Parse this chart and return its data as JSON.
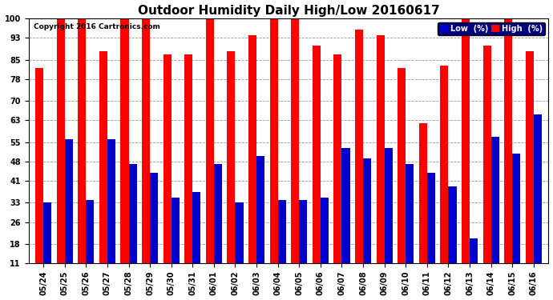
{
  "title": "Outdoor Humidity Daily High/Low 20160617",
  "copyright": "Copyright 2016 Cartronics.com",
  "categories": [
    "05/24",
    "05/25",
    "05/26",
    "05/27",
    "05/28",
    "05/29",
    "05/30",
    "05/31",
    "06/01",
    "06/02",
    "06/03",
    "06/04",
    "06/05",
    "06/06",
    "06/07",
    "06/08",
    "06/09",
    "06/10",
    "06/11",
    "06/12",
    "06/13",
    "06/14",
    "06/15",
    "06/16"
  ],
  "high_values": [
    82,
    100,
    100,
    88,
    100,
    100,
    87,
    87,
    100,
    88,
    94,
    100,
    100,
    90,
    87,
    96,
    94,
    82,
    62,
    83,
    100,
    90,
    100,
    88
  ],
  "low_values": [
    33,
    56,
    34,
    56,
    47,
    44,
    35,
    37,
    47,
    33,
    50,
    34,
    34,
    35,
    53,
    49,
    53,
    47,
    44,
    39,
    20,
    57,
    51,
    65
  ],
  "high_color": "#ff0000",
  "low_color": "#0000cc",
  "bg_color": "#ffffff",
  "plot_bg_color": "#ffffff",
  "grid_color": "#999999",
  "ymin": 11,
  "ymax": 100,
  "yticks": [
    11,
    18,
    26,
    33,
    41,
    48,
    55,
    63,
    70,
    78,
    85,
    93,
    100
  ],
  "title_fontsize": 11,
  "tick_fontsize": 7,
  "bar_width": 0.38
}
